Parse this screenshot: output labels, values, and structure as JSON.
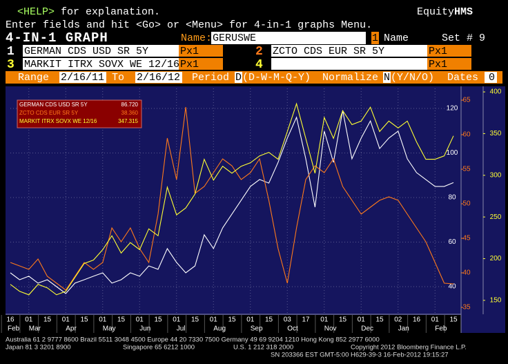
{
  "screen": {
    "help_key": "<HELP>",
    "help_text": "for explanation.",
    "brand": "Equity",
    "brand_bold": "HMS",
    "instructions": "Enter fields and hit <Go> or <Menu> for 4-in-1 graphs Menu.",
    "screen_title": "4-IN-1 GRAPH",
    "name_label": "Name:",
    "name_value": "GERUSWE",
    "name_index": "1",
    "name_suffix": "Name",
    "set_label": "Set # 9",
    "slots": [
      {
        "num": "1",
        "security": "GERMAN CDS USD SR 5Y",
        "field": "Px1"
      },
      {
        "num": "2",
        "security": "ZCTO CDS EUR SR 5Y",
        "field": "Px1"
      },
      {
        "num": "3",
        "security": "MARKIT ITRX SOVX WE 12/16",
        "field": "Px1"
      },
      {
        "num": "4",
        "security": "",
        "field": "Px1"
      }
    ],
    "range_label": "Range",
    "range_from": "2/16/11",
    "to_label": "To",
    "range_to": "2/16/12",
    "period_label": "Period",
    "period_value": "D",
    "period_options": "(D-W-M-Q-Y)",
    "normalize_label": "Normalize",
    "normalize_value": "N",
    "normalize_options": "(Y/N/O)",
    "dates_label": "Dates",
    "dates_value": "0",
    "footer": [
      "Australia 61 2 9777 8600 Brazil 5511 3048 4500 Europe 44 20 7330 7500 Germany 49 69 9204 1210 Hong Kong 852 2977 6000",
      "Japan 81 3 3201 8900",
      "Singapore 65 6212 1000",
      "U.S. 1 212 318 2000",
      "Copyright 2012 Bloomberg Finance L.P.",
      "SN 203366 EST  GMT-5:00 H629-39-3 16-Feb-2012 19:15:27"
    ]
  },
  "chart_data": {
    "type": "line",
    "day_labels": [
      "16",
      "01",
      "15",
      "01",
      "15",
      "01",
      "15",
      "01",
      "15",
      "01",
      "15",
      "01",
      "15",
      "01",
      "15",
      "03",
      "17",
      "01",
      "15",
      "01",
      "15",
      "02",
      "16",
      "01",
      "15"
    ],
    "month_labels": [
      "Feb",
      "Mar",
      "Apr",
      "May",
      "Jun",
      "Jul",
      "Aug",
      "Sep",
      "Oct",
      "Nov",
      "Dec",
      "Jan",
      "Feb"
    ],
    "ylim": [
      27.6,
      129
    ],
    "yticks": [
      40,
      60,
      80,
      100,
      120
    ],
    "y2lim": [
      34,
      66.7
    ],
    "y2ticks": [
      35,
      40,
      45,
      50,
      55,
      60,
      65
    ],
    "y3lim": [
      133.3,
      404.2
    ],
    "y3ticks": [
      150,
      200,
      250,
      300,
      350,
      400
    ],
    "grid": true,
    "series": [
      {
        "name": "GERMAN CDS USD SR 5Y",
        "color": "#ffffff",
        "axis": "y",
        "last_label": "86.720",
        "values": [
          46.2,
          43.1,
          44.7,
          41.6,
          43.1,
          40.0,
          36.9,
          41.6,
          43.1,
          44.7,
          46.2,
          41.6,
          43.1,
          46.2,
          44.7,
          49.3,
          47.8,
          57.1,
          50.9,
          46.2,
          49.3,
          63.3,
          57.1,
          66.4,
          72.6,
          78.8,
          85.0,
          88.1,
          86.5,
          95.8,
          106.7,
          116.0,
          97.4,
          75.7,
          109.8,
          95.8,
          119.1,
          97.4,
          106.7,
          114.4,
          102.0,
          106.7,
          109.8,
          97.4,
          91.2,
          88.1,
          85.0,
          85.0,
          86.7
        ]
      },
      {
        "name": "ZCTO CDS EUR SR 5Y",
        "color": "#ff7a1a",
        "axis": "y2",
        "last_label": "38.360",
        "values": [
          41.5,
          41,
          40.5,
          42,
          39.5,
          38.5,
          37.5,
          39.5,
          41.5,
          40.5,
          41.5,
          46.5,
          44.5,
          46.5,
          43.5,
          41.5,
          48.5,
          59.5,
          53.5,
          64,
          51.5,
          52.5,
          54.5,
          56.5,
          55.5,
          53.5,
          54.5,
          56.5,
          50.5,
          43.5,
          38.5,
          46.5,
          53.5,
          55.5,
          54.5,
          56.5,
          52.5,
          50.5,
          48.5,
          49.5,
          50.5,
          51,
          50.5,
          48.5,
          46.5,
          44.5,
          41.5,
          38.5,
          38.4
        ]
      },
      {
        "name": "MARKIT ITRX SOVX WE 12/16",
        "color": "#ffff33",
        "axis": "y3",
        "last_label": "347.315",
        "values": [
          169.2,
          160.8,
          156.7,
          169.2,
          165,
          156.7,
          160.8,
          177.5,
          194.2,
          198.3,
          210.8,
          227.5,
          206.7,
          219.2,
          210.8,
          235.8,
          227.5,
          285.8,
          252.5,
          260.8,
          277.5,
          319.2,
          294.2,
          310.8,
          302.5,
          310.8,
          315,
          323.3,
          327.5,
          319.2,
          352.5,
          385.8,
          344.2,
          302.5,
          369.2,
          344.2,
          377.5,
          360.8,
          365,
          381.7,
          352.5,
          365,
          356.7,
          365,
          340,
          319.2,
          319.2,
          323.3,
          347.3
        ]
      }
    ]
  }
}
